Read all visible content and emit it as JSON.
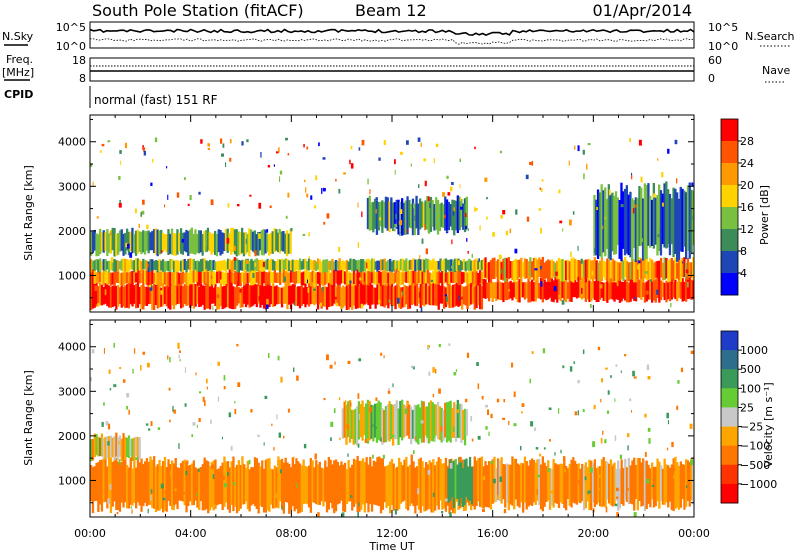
{
  "header": {
    "station": "South Pole Station (fitACF)",
    "beam": "Beam 12",
    "date": "01/Apr/2014"
  },
  "top_panels": {
    "nsky_label": "N.Sky",
    "nsky_ticks": [
      "10^5",
      "10^0"
    ],
    "nsearch_label": "N.Search",
    "nsearch_ticks": [
      "10^5",
      "10^0"
    ],
    "freq_label": "Freq.",
    "freq_unit": "[MHz]",
    "freq_ticks": [
      "18",
      "8"
    ],
    "nave_label": "Nave",
    "nave_ticks": [
      "60",
      "0"
    ],
    "cpid_label": "CPID",
    "cpid_text": "normal (fast) 151 RF"
  },
  "axes": {
    "xlabel": "Time UT",
    "xticks": [
      "00:00",
      "04:00",
      "08:00",
      "12:00",
      "16:00",
      "20:00",
      "00:00"
    ],
    "ylabel": "Slant Range [km]",
    "yticks": [
      "4000",
      "3000",
      "2000",
      "1000"
    ]
  },
  "power_scale": {
    "title": "Power [dB]",
    "ticks": [
      "28",
      "24",
      "20",
      "16",
      "12",
      "8",
      "4"
    ],
    "colors": [
      "#ff0000",
      "#ff5500",
      "#ff9900",
      "#ffd200",
      "#7ac040",
      "#3c8c5a",
      "#1e46b4",
      "#0000ff"
    ]
  },
  "velocity_scale": {
    "title": "Velocity [m s⁻¹]",
    "ticks": [
      "1000",
      "500",
      "100",
      "25",
      "−25",
      "−100",
      "−500",
      "−1000"
    ],
    "colors": [
      "#1e3cc8",
      "#2e6e8c",
      "#3a9a5a",
      "#66cc33",
      "#c8c8c8",
      "#ffa500",
      "#ff7700",
      "#ff3300",
      "#ff0000"
    ]
  },
  "chart_data": [
    {
      "type": "heatmap",
      "title": "Power",
      "ylabel": "Slant Range [km]",
      "xlabel": "Time UT",
      "xlim_hours": [
        0,
        24
      ],
      "ylim_km": [
        180,
        4600
      ],
      "zlabel": "Power [dB]",
      "zlim": [
        0,
        30
      ],
      "bands": [
        {
          "t0": 0.0,
          "t1": 15.6,
          "r0": 300,
          "r1": 800,
          "value": 28
        },
        {
          "t0": 0.0,
          "t1": 15.6,
          "r0": 800,
          "r1": 1100,
          "value": 24
        },
        {
          "t0": 0.0,
          "t1": 15.6,
          "r0": 1100,
          "r1": 1350,
          "value": 14
        },
        {
          "t0": 15.6,
          "t1": 24.0,
          "r0": 450,
          "r1": 900,
          "value": 28
        },
        {
          "t0": 15.6,
          "t1": 24.0,
          "r0": 900,
          "r1": 1350,
          "value": 22
        },
        {
          "t0": 0.0,
          "t1": 8.0,
          "r0": 1500,
          "r1": 2000,
          "value": 12
        },
        {
          "t0": 11.0,
          "t1": 15.0,
          "r0": 2000,
          "r1": 2700,
          "value": 10
        },
        {
          "t0": 20.0,
          "t1": 24.0,
          "r0": 1500,
          "r1": 2900,
          "value": 9
        }
      ]
    },
    {
      "type": "heatmap",
      "title": "Velocity",
      "ylabel": "Slant Range [km]",
      "xlabel": "Time UT",
      "xlim_hours": [
        0,
        24
      ],
      "ylim_km": [
        180,
        4600
      ],
      "zlabel": "Velocity [m s-1]",
      "zlim": [
        -1000,
        1000
      ],
      "bands": [
        {
          "t0": 0.0,
          "t1": 15.6,
          "r0": 400,
          "r1": 1400,
          "value": -150
        },
        {
          "t0": 15.6,
          "t1": 24.0,
          "r0": 450,
          "r1": 1400,
          "value": -120
        },
        {
          "t0": 0.0,
          "t1": 2.0,
          "r0": 1500,
          "r1": 2000,
          "value": 0
        },
        {
          "t0": 10.0,
          "t1": 15.0,
          "r0": 1900,
          "r1": 2700,
          "value": 0
        },
        {
          "t0": 14.2,
          "t1": 15.2,
          "r0": 500,
          "r1": 1400,
          "value": 200
        }
      ]
    }
  ]
}
